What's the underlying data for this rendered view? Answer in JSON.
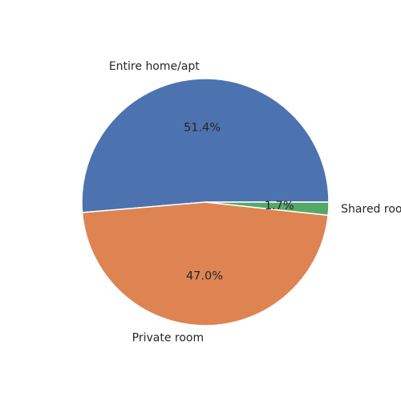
{
  "chart_data": {
    "type": "pie",
    "title": "",
    "slices": [
      {
        "label": "Entire home/apt",
        "value": 51.4,
        "pct_text": "51.4%",
        "color": "#4c72b0"
      },
      {
        "label": "Private room",
        "value": 47.0,
        "pct_text": "47.0%",
        "color": "#dd8452"
      },
      {
        "label": "Shared room",
        "value": 1.7,
        "pct_text": "1.7%",
        "color": "#55a868"
      }
    ],
    "start_angle_deg": 0,
    "direction": "counterclockwise",
    "edge_color": "#ffffff",
    "legend": "none"
  }
}
